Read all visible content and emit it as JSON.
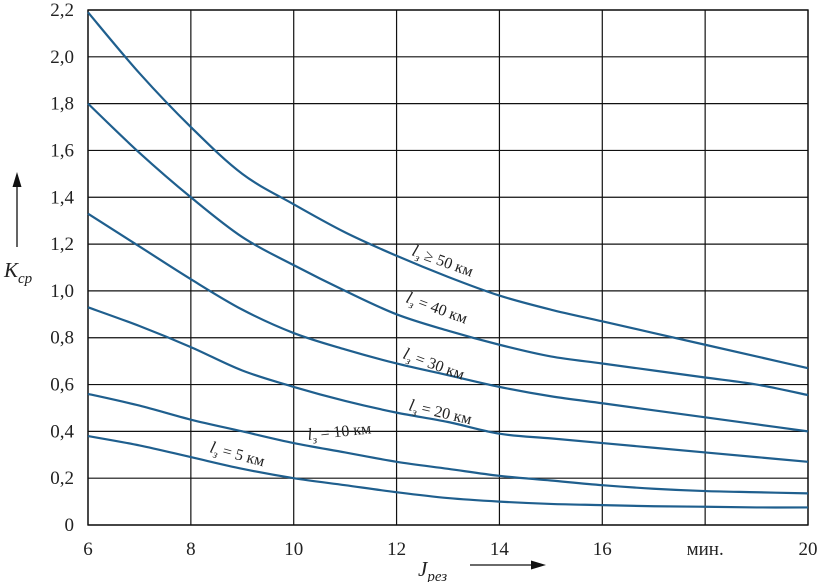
{
  "chart_data": {
    "type": "line",
    "xlabel": "J",
    "xlabel_sub": "рез",
    "ylabel": "K",
    "ylabel_sub": "ср",
    "x_unit_label": "мин.",
    "xlim": [
      6,
      20
    ],
    "ylim": [
      0,
      2.2
    ],
    "grid": true,
    "x_ticks": [
      "6",
      "8",
      "10",
      "12",
      "14",
      "16",
      "мин.",
      "20"
    ],
    "y_ticks": [
      "0",
      "0,2",
      "0,4",
      "0,6",
      "0,8",
      "1,0",
      "1,2",
      "1,4",
      "1,6",
      "1,8",
      "2,0",
      "2,2"
    ],
    "series": [
      {
        "name": "lз ≥ 50 км",
        "label_parts": [
          "l",
          "з",
          " ≥ 50 км"
        ],
        "x": [
          6,
          7,
          8,
          9,
          10,
          11,
          12,
          13,
          14,
          15,
          16,
          17,
          18,
          19,
          20
        ],
        "y": [
          2.19,
          1.93,
          1.7,
          1.5,
          1.37,
          1.25,
          1.15,
          1.06,
          0.98,
          0.92,
          0.87,
          0.82,
          0.77,
          0.72,
          0.67
        ]
      },
      {
        "name": "lз = 40 км",
        "label_parts": [
          "l",
          "з",
          " = 40 км"
        ],
        "x": [
          6,
          7,
          8,
          9,
          10,
          11,
          12,
          13,
          14,
          15,
          16,
          17,
          18,
          19,
          20
        ],
        "y": [
          1.8,
          1.59,
          1.4,
          1.23,
          1.11,
          1.0,
          0.9,
          0.83,
          0.77,
          0.72,
          0.69,
          0.66,
          0.63,
          0.6,
          0.555
        ]
      },
      {
        "name": "lз = 30 км",
        "label_parts": [
          "l",
          "з",
          " = 30 км"
        ],
        "x": [
          6,
          7,
          8,
          9,
          10,
          11,
          12,
          13,
          14,
          15,
          16,
          17,
          18,
          19,
          20
        ],
        "y": [
          1.33,
          1.19,
          1.05,
          0.92,
          0.82,
          0.75,
          0.69,
          0.64,
          0.59,
          0.55,
          0.52,
          0.49,
          0.46,
          0.43,
          0.4
        ]
      },
      {
        "name": "lз = 20 км",
        "label_parts": [
          "l",
          "з",
          " = 20 км"
        ],
        "x": [
          6,
          7,
          8,
          9,
          10,
          11,
          12,
          13,
          14,
          15,
          16,
          17,
          18,
          19,
          20
        ],
        "y": [
          0.93,
          0.85,
          0.76,
          0.66,
          0.59,
          0.53,
          0.48,
          0.44,
          0.39,
          0.37,
          0.35,
          0.33,
          0.31,
          0.29,
          0.27
        ]
      },
      {
        "name": "lз = 10 км",
        "label_parts": [
          "l",
          "з",
          " = 10 км"
        ],
        "x": [
          6,
          7,
          8,
          9,
          10,
          11,
          12,
          13,
          14,
          15,
          16,
          17,
          18,
          19,
          20
        ],
        "y": [
          0.56,
          0.51,
          0.45,
          0.4,
          0.35,
          0.31,
          0.27,
          0.24,
          0.21,
          0.19,
          0.17,
          0.155,
          0.145,
          0.14,
          0.135
        ]
      },
      {
        "name": "lз = 5 км",
        "label_parts": [
          "l",
          "з",
          " = 5 км"
        ],
        "x": [
          6,
          7,
          8,
          9,
          10,
          11,
          12,
          13,
          14,
          15,
          16,
          17,
          18,
          19,
          20
        ],
        "y": [
          0.38,
          0.34,
          0.29,
          0.24,
          0.2,
          0.17,
          0.14,
          0.115,
          0.1,
          0.09,
          0.085,
          0.08,
          0.078,
          0.075,
          0.075
        ]
      }
    ]
  }
}
